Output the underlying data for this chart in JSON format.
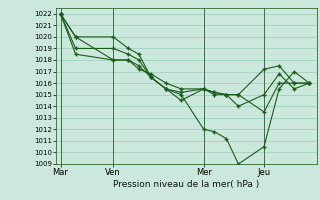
{
  "xlabel": "Pression niveau de la mer( hPa )",
  "background_color": "#cce8dc",
  "grid_color": "#99ccbb",
  "line_color": "#1a5c1a",
  "marker_color": "#1a5c1a",
  "ylim": [
    1009,
    1022.5
  ],
  "yticks": [
    1009,
    1010,
    1011,
    1012,
    1013,
    1014,
    1015,
    1016,
    1017,
    1018,
    1019,
    1020,
    1021,
    1022
  ],
  "x_day_labels": [
    {
      "label": "Mar",
      "x": 0.0
    },
    {
      "label": "Ven",
      "x": 3.5
    },
    {
      "label": "Mer",
      "x": 9.5
    },
    {
      "label": "Jeu",
      "x": 13.5
    }
  ],
  "x_day_vlines": [
    0.0,
    3.5,
    9.5,
    13.5
  ],
  "xlim": [
    -0.3,
    17.0
  ],
  "series": [
    {
      "x": [
        0,
        1.0,
        3.5,
        4.5,
        5.2,
        6.0,
        7.0,
        8.0,
        9.5,
        10.2,
        11.0,
        11.8,
        13.5,
        14.5,
        15.5,
        16.5
      ],
      "y": [
        1022,
        1020,
        1018,
        1018,
        1017.5,
        1016.5,
        1015.5,
        1014.5,
        1015.5,
        1015.2,
        1015.0,
        1015.0,
        1013.5,
        1016.0,
        1016.0,
        1016.0
      ]
    },
    {
      "x": [
        0,
        1.0,
        3.5,
        4.5,
        5.2,
        6.0,
        7.0,
        8.0,
        9.5,
        10.2,
        11.0,
        11.8,
        13.5,
        14.5,
        15.5,
        16.5
      ],
      "y": [
        1022,
        1020,
        1020,
        1019,
        1018.5,
        1016.5,
        1015.5,
        1015.0,
        1012.0,
        1011.8,
        1011.2,
        1009.0,
        1010.5,
        1015.5,
        1017.0,
        1016.0
      ]
    },
    {
      "x": [
        0,
        1.0,
        3.5,
        4.5,
        5.2,
        6.0,
        7.0,
        8.0,
        9.5,
        10.2,
        11.0,
        11.8,
        13.5,
        14.5,
        15.5,
        16.5
      ],
      "y": [
        1022,
        1019,
        1019,
        1018.5,
        1018.0,
        1016.5,
        1015.5,
        1015.2,
        1015.5,
        1015.0,
        1015.0,
        1014.0,
        1015.0,
        1016.8,
        1015.5,
        1016.0
      ]
    },
    {
      "x": [
        0,
        1.0,
        3.5,
        4.5,
        5.2,
        6.0,
        7.0,
        8.0,
        9.5,
        10.2,
        11.0,
        11.8,
        13.5,
        14.5,
        15.5,
        16.5
      ],
      "y": [
        1022,
        1018.5,
        1018,
        1018,
        1017.2,
        1016.8,
        1016.0,
        1015.5,
        1015.5,
        1015.2,
        1015.0,
        1015.0,
        1017.2,
        1017.5,
        1016.0,
        1016.0
      ]
    }
  ]
}
